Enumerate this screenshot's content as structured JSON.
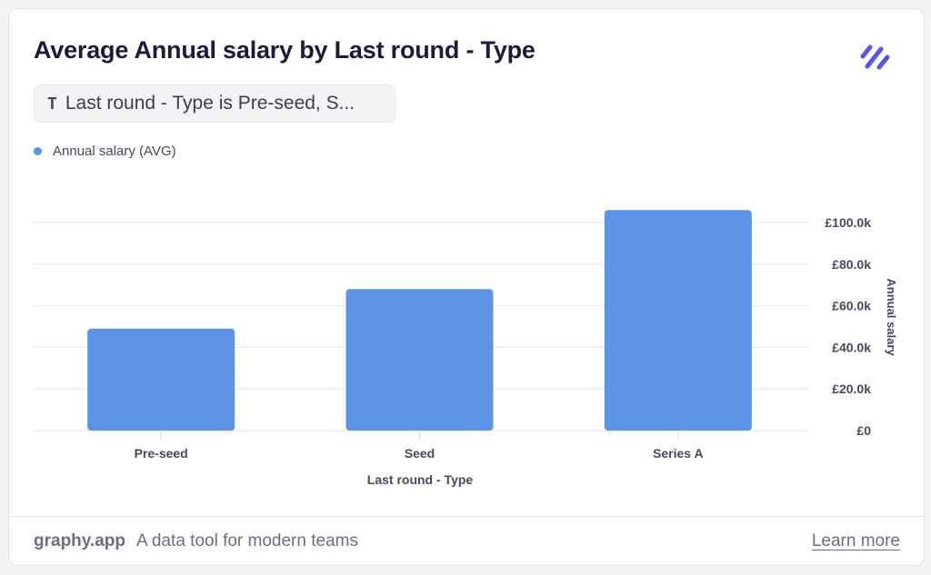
{
  "card": {
    "title": "Average Annual salary by Last round - Type",
    "filter": {
      "icon": "T",
      "label": "Last round - Type is Pre-seed, S..."
    },
    "legend": {
      "label": "Annual salary (AVG)",
      "color": "#5b93e6"
    }
  },
  "chart_data": {
    "type": "bar",
    "title": "Average Annual salary by Last round - Type",
    "categories": [
      "Pre-seed",
      "Seed",
      "Series A"
    ],
    "series": [
      {
        "name": "Annual salary (AVG)",
        "values": [
          49000,
          68000,
          106000
        ],
        "color": "#5b93e6"
      }
    ],
    "xlabel": "Last round - Type",
    "ylabel": "Annual salary",
    "ylim": [
      0,
      100000
    ],
    "yticks": [
      0,
      20000,
      40000,
      60000,
      80000,
      100000
    ],
    "ytick_labels": [
      "£0",
      "£20.0k",
      "£40.0k",
      "£60.0k",
      "£80.0k",
      "£100.0k"
    ],
    "y_axis_side": "right",
    "grid": true
  },
  "footer": {
    "brand": "graphy.app",
    "tagline": "A data tool for modern teams",
    "link": "Learn more"
  }
}
